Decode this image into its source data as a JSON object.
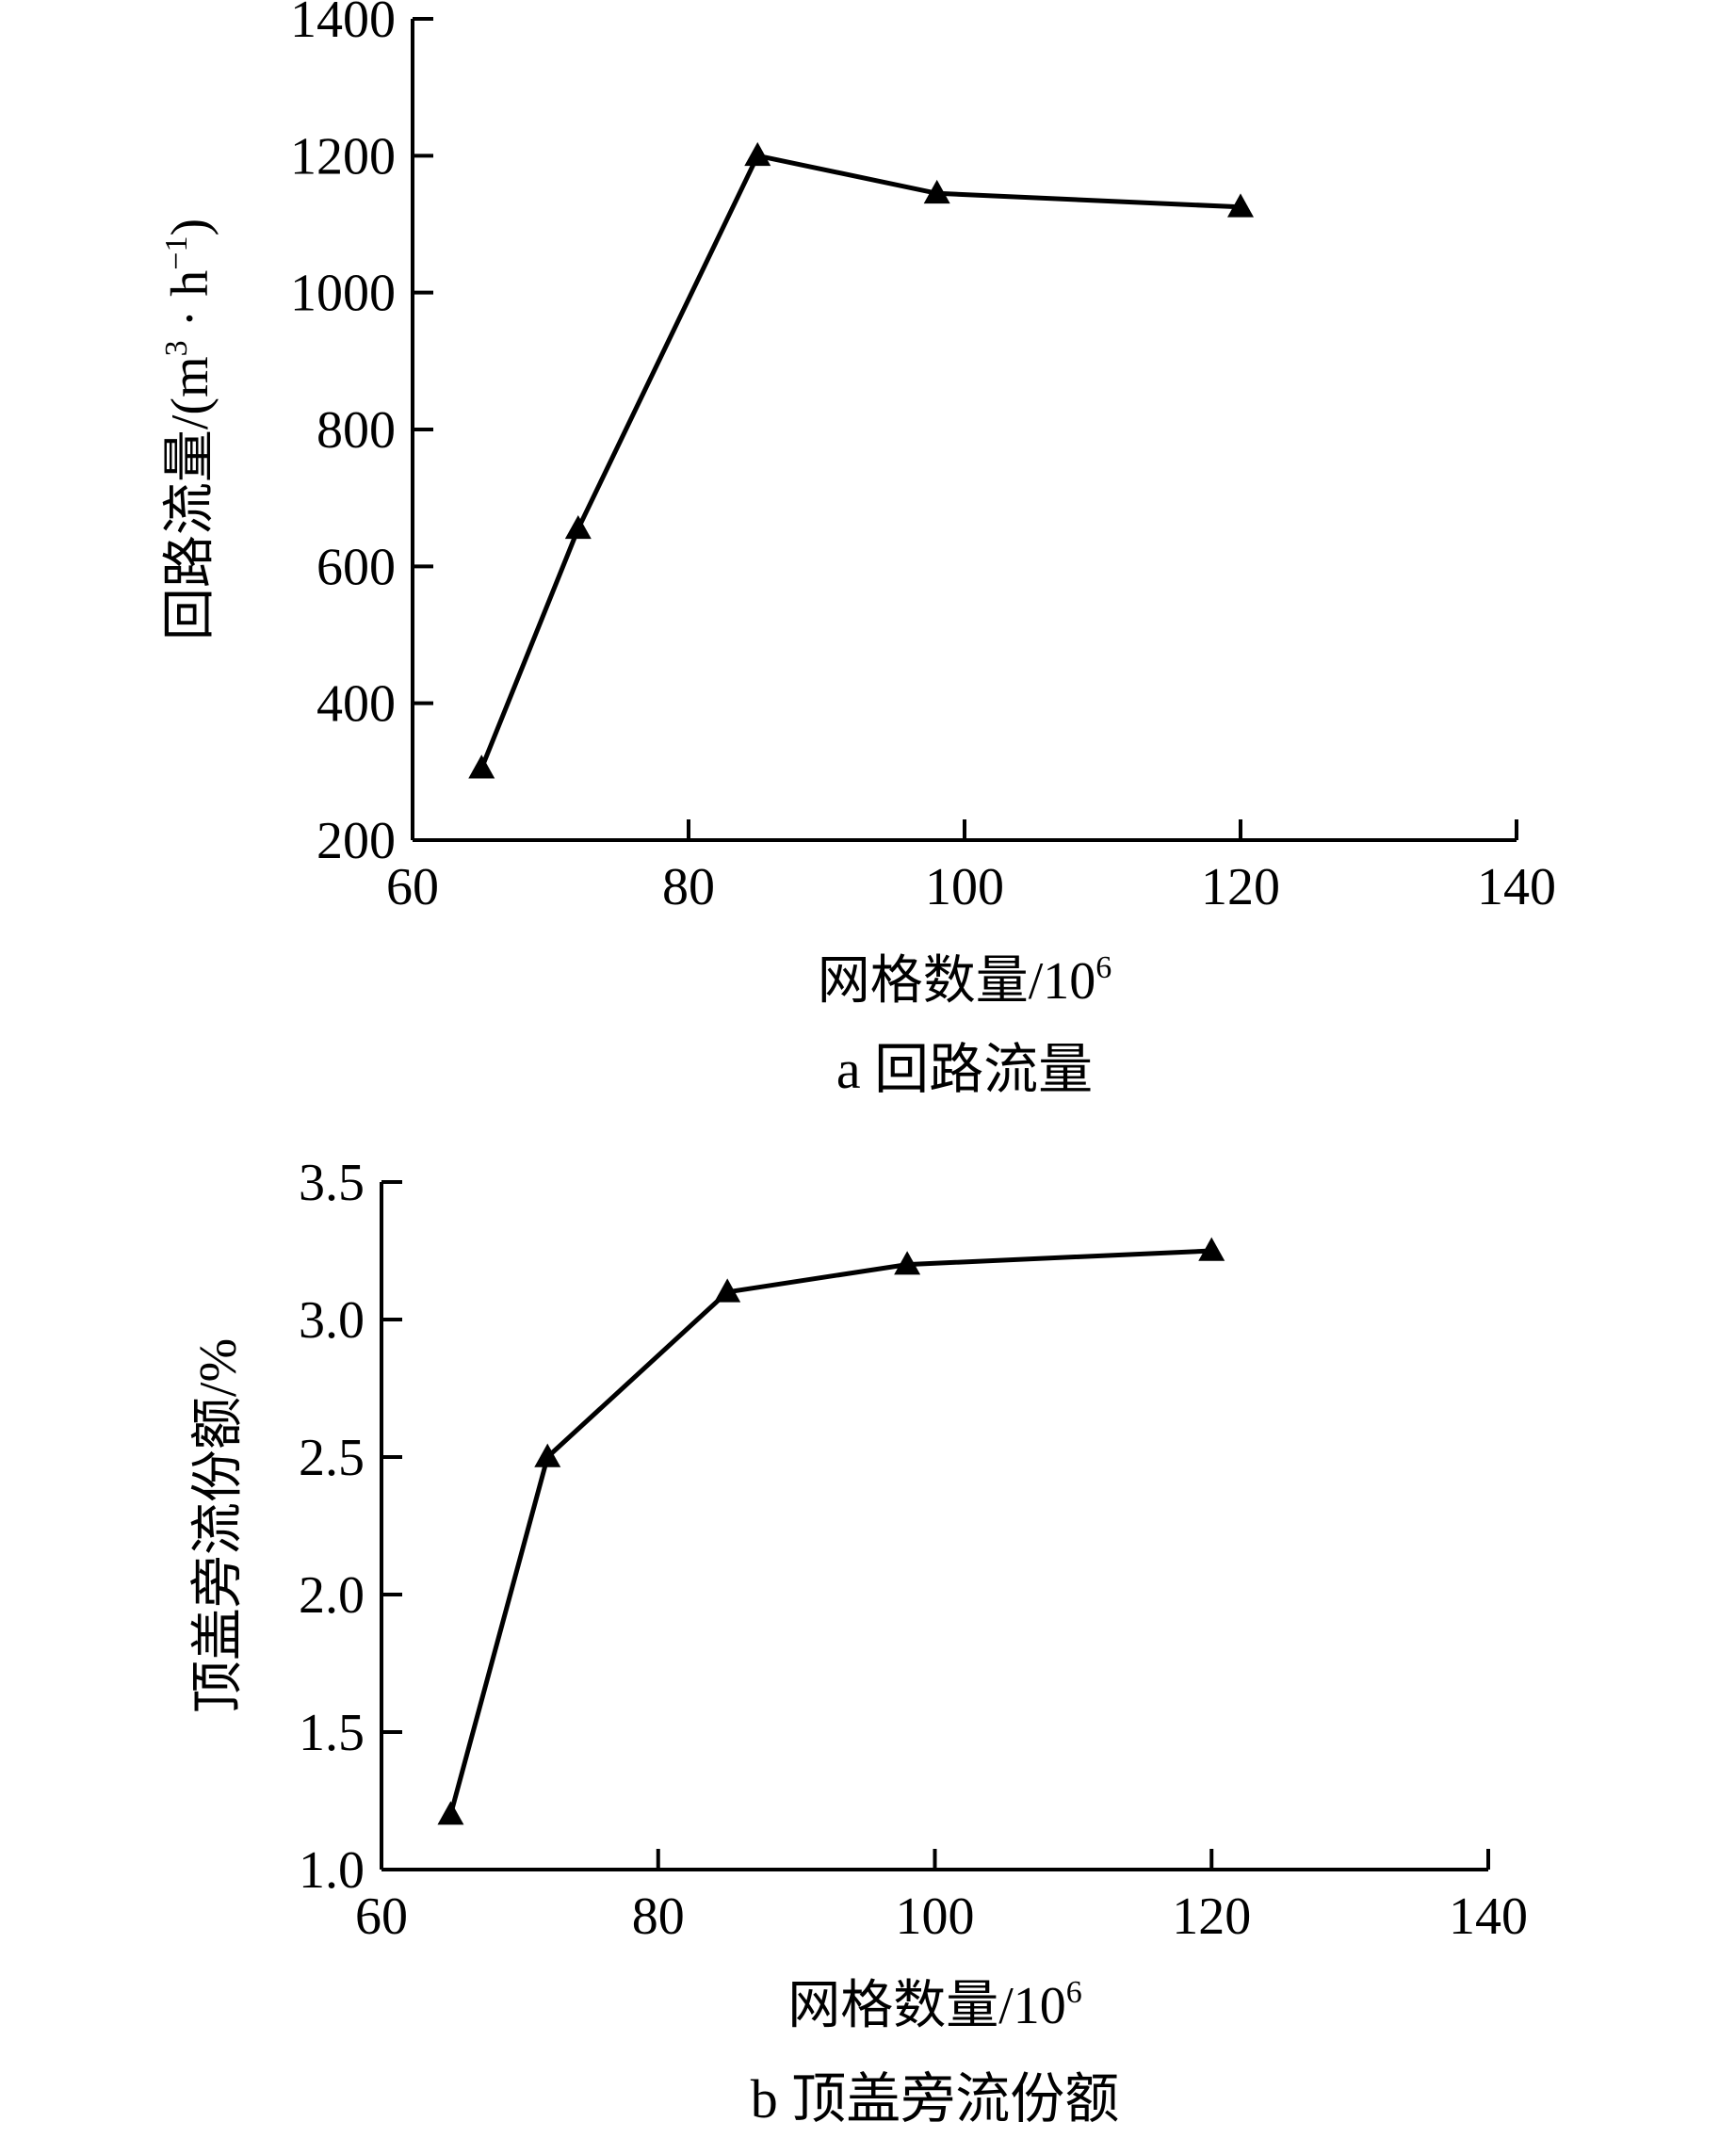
{
  "chart_data": [
    {
      "type": "line",
      "caption": "a  回路流量",
      "xlabel": "网格数量/10",
      "xlabel_sup": "6",
      "ylabel": "回路流量/(m",
      "ylabel_sup1": "3",
      "ylabel_mid": " · h",
      "ylabel_sup2": "−1",
      "ylabel_end": ")",
      "xlim": [
        60,
        140
      ],
      "ylim": [
        200,
        1400
      ],
      "xticks": [
        "60",
        "80",
        "100",
        "120",
        "140"
      ],
      "yticks": [
        "200",
        "400",
        "600",
        "800",
        "1000",
        "1200",
        "1400"
      ],
      "marker": "triangle",
      "grid": false,
      "x": [
        65,
        72,
        85,
        98,
        120
      ],
      "y": [
        305,
        655,
        1200,
        1145,
        1125
      ]
    },
    {
      "type": "line",
      "caption": "b  顶盖旁流份额",
      "xlabel": "网格数量/10",
      "xlabel_sup": "6",
      "ylabel": "顶盖旁流份额/%",
      "xlim": [
        60,
        140
      ],
      "ylim": [
        1.0,
        3.5
      ],
      "xticks": [
        "60",
        "80",
        "100",
        "120",
        "140"
      ],
      "yticks": [
        "1.0",
        "1.5",
        "2.0",
        "2.5",
        "3.0",
        "3.5"
      ],
      "marker": "triangle",
      "grid": false,
      "x": [
        65,
        72,
        85,
        98,
        120
      ],
      "y": [
        1.2,
        2.5,
        3.1,
        3.2,
        3.25
      ]
    }
  ]
}
